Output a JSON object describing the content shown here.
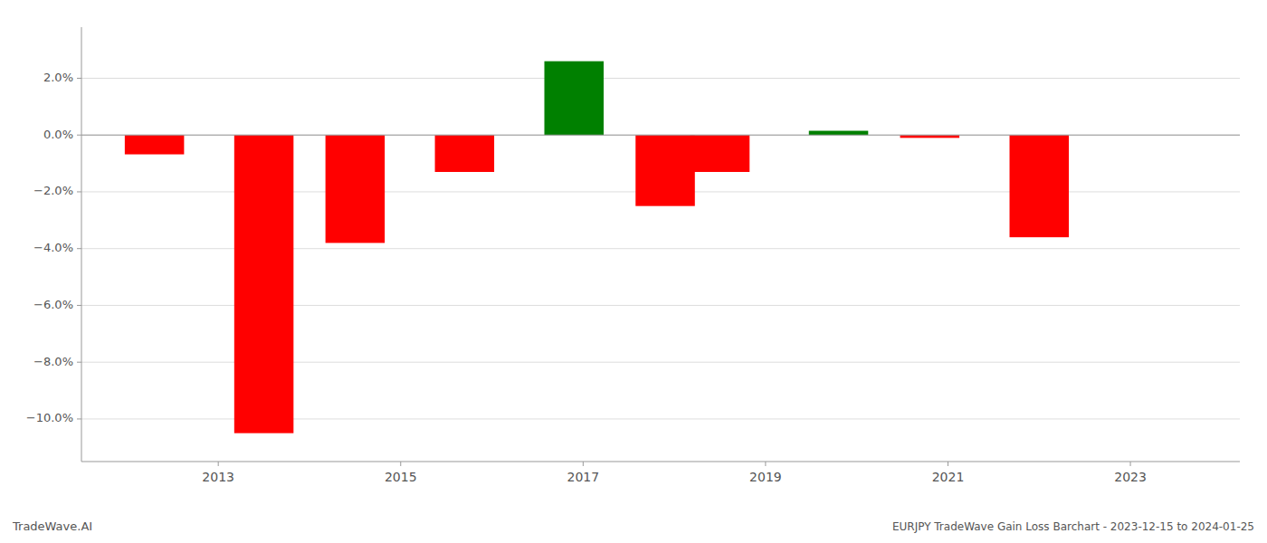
{
  "chart_data": {
    "type": "bar",
    "title": "EURJPY TradeWave Gain Loss Barchart - 2023-12-15 to 2024-01-25",
    "annotations": [
      "TradeWave.AI"
    ],
    "x": [
      2012.3,
      2013.5,
      2014.5,
      2015.7,
      2016.9,
      2017.9,
      2018.5,
      2019.8,
      2020.8,
      2022.0
    ],
    "values": [
      -0.0068,
      -0.105,
      -0.038,
      -0.013,
      0.026,
      -0.025,
      -0.013,
      0.0015,
      -0.001,
      -0.036
    ],
    "colors": [
      "#ff0000",
      "#ff0000",
      "#ff0000",
      "#ff0000",
      "#008000",
      "#ff0000",
      "#ff0000",
      "#008000",
      "#ff0000",
      "#ff0000"
    ],
    "xlim": [
      2011.5,
      2024.2
    ],
    "xticks": [
      2013,
      2015,
      2017,
      2019,
      2021,
      2023
    ],
    "ylim": [
      -0.115,
      0.038
    ],
    "yticks": [
      {
        "value": -0.1,
        "label": "−10.0%"
      },
      {
        "value": -0.08,
        "label": "−8.0%"
      },
      {
        "value": -0.06,
        "label": "−6.0%"
      },
      {
        "value": -0.04,
        "label": "−4.0%"
      },
      {
        "value": -0.02,
        "label": "−2.0%"
      },
      {
        "value": 0,
        "label": "0.0%"
      },
      {
        "value": 0.02,
        "label": "2.0%"
      }
    ],
    "grid": true
  }
}
